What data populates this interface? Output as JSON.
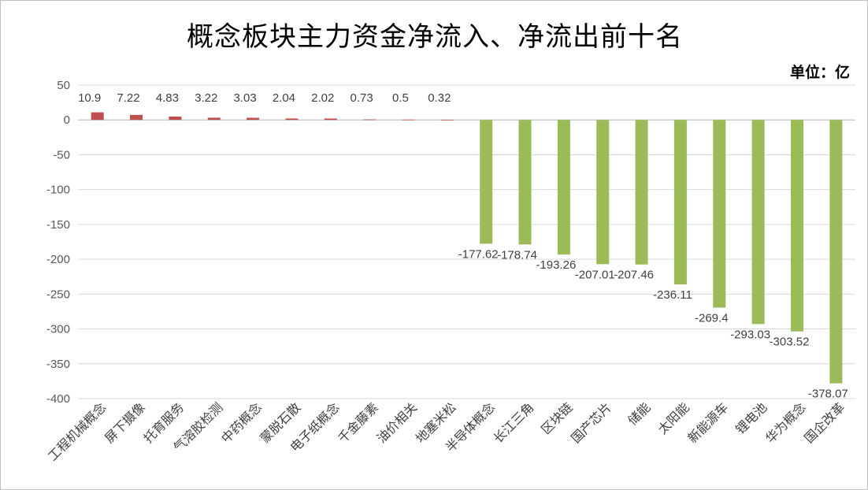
{
  "chart_data": {
    "type": "bar",
    "title": "概念板块主力资金净流入、净流出前十名",
    "unit_label": "单位：亿",
    "categories": [
      "工程机械概念",
      "屏下摄像",
      "托育服务",
      "气溶胶检测",
      "中药概念",
      "蒙脱石散",
      "电子纸概念",
      "千金藤素",
      "油价相关",
      "地塞米松",
      "半导体概念",
      "长江三角",
      "区块链",
      "国产芯片",
      "储能",
      "太阳能",
      "新能源车",
      "锂电池",
      "华为概念",
      "国企改革"
    ],
    "values": [
      10.9,
      7.22,
      4.83,
      3.22,
      3.03,
      2.04,
      2.02,
      0.73,
      0.5,
      0.32,
      -177.62,
      -178.74,
      -193.26,
      -207.01,
      -207.46,
      -236.11,
      -269.4,
      -293.03,
      -303.52,
      -378.07
    ],
    "data_labels": [
      "10.9",
      "7.22",
      "4.83",
      "3.22",
      "3.03",
      "2.04",
      "2.02",
      "0.73",
      "0.5",
      "0.32",
      "-177.62",
      "-178.74",
      "-193.26",
      "-207.01",
      "-207.46",
      "-236.11",
      "-269.4",
      "-293.03",
      "-303.52",
      "-378.07"
    ],
    "ylim": [
      -400,
      50
    ],
    "yticks": [
      50,
      0,
      -50,
      -100,
      -150,
      -200,
      -250,
      -300,
      -350,
      -400
    ],
    "grid": true,
    "legend": "none",
    "colors": {
      "positive": "#c0504d",
      "negative": "#9bbb59",
      "grid": "#d9d9d9",
      "axis": "#bfbfbf"
    }
  }
}
